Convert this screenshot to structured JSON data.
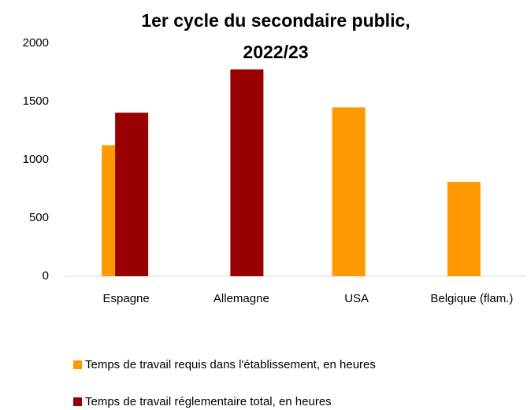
{
  "chart_data": {
    "type": "bar",
    "title": "1er cycle du secondaire public, 2022/23",
    "categories": [
      "Espagne",
      "Allemagne",
      "USA",
      "Belgique (flam.)"
    ],
    "series": [
      {
        "name": "Temps de travail requis dans l'établissement, en heures",
        "color": "#ff9900",
        "values": [
          1125,
          null,
          1450,
          810
        ]
      },
      {
        "name": "Temps de travail réglementaire total, en heures",
        "color": "#990000",
        "values": [
          1404,
          1775,
          null,
          null
        ]
      }
    ],
    "ylim": [
      0,
      2000
    ],
    "yticks": [
      0,
      500,
      1000,
      1500,
      2000
    ],
    "grid": false,
    "legend": "bottom"
  }
}
